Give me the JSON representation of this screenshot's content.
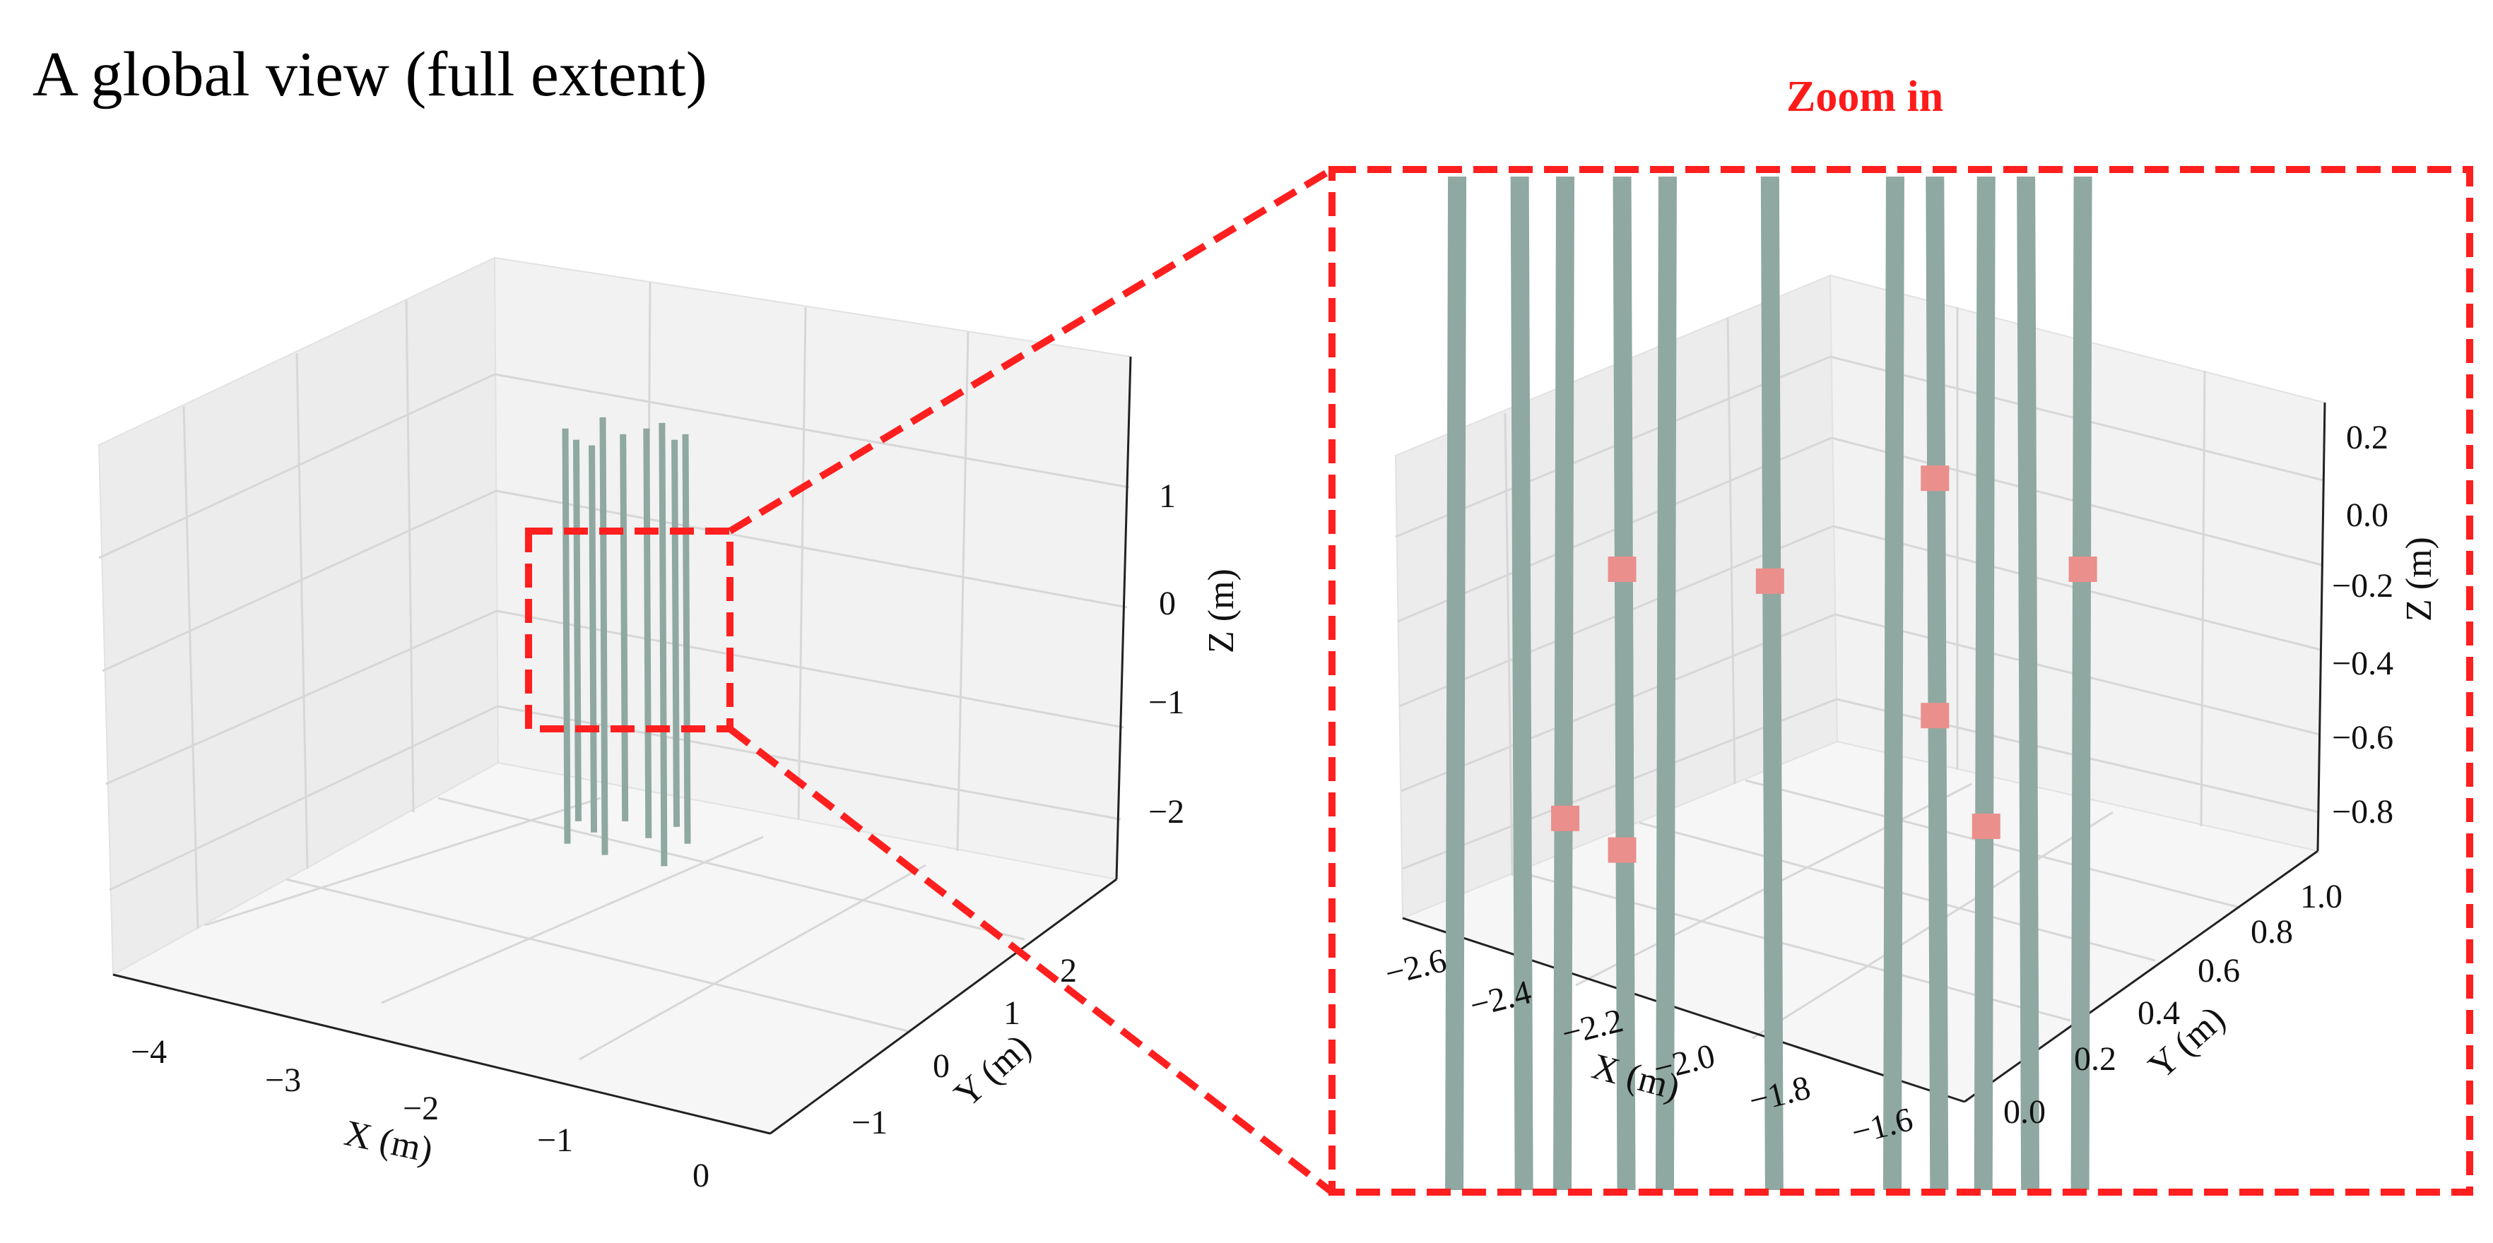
{
  "figure": {
    "title": "A  global view (full extent)",
    "zoom_label": "Zoom in"
  },
  "colors": {
    "point_cloud": "#8fa8a1",
    "segments": "#ea8f8c",
    "zoom_box": "#ff1f1f"
  },
  "chart_data": [
    {
      "type": "scatter3d",
      "name": "global",
      "xlabel": "X (m)",
      "ylabel": "Y (m)",
      "zlabel": "Z (m)",
      "xticks": [
        "−4",
        "−3",
        "−2",
        "−1",
        "0"
      ],
      "yticks": [
        "−1",
        "0",
        "1",
        "2"
      ],
      "zticks": [
        "1",
        "0",
        "−1",
        "−2"
      ],
      "xlim": [
        -4.5,
        0.2
      ],
      "ylim": [
        -1.5,
        2.8
      ],
      "zlim": [
        -2.7,
        1.8
      ],
      "grid": true,
      "trunks": [
        {
          "x": -2.62,
          "y": 0.35,
          "z_bottom": -2.1,
          "z_top": 1.6
        },
        {
          "x": -2.55,
          "y": 0.45,
          "z_bottom": -1.9,
          "z_top": 1.5
        },
        {
          "x": -2.45,
          "y": 0.55,
          "z_bottom": -2.0,
          "z_top": 1.45
        },
        {
          "x": -2.38,
          "y": 0.75,
          "z_bottom": -2.2,
          "z_top": 1.7
        },
        {
          "x": -2.25,
          "y": 0.5,
          "z_bottom": -1.9,
          "z_top": 1.55
        },
        {
          "x": -2.1,
          "y": 0.6,
          "z_bottom": -2.05,
          "z_top": 1.6
        },
        {
          "x": -2.0,
          "y": 0.7,
          "z_bottom": -2.3,
          "z_top": 1.65
        },
        {
          "x": -1.92,
          "y": 0.45,
          "z_bottom": -1.95,
          "z_top": 1.5
        },
        {
          "x": -1.85,
          "y": 0.8,
          "z_bottom": -2.1,
          "z_top": 1.55
        }
      ],
      "zoom_box": {
        "xlim": [
          -2.7,
          -1.5
        ],
        "zlim": [
          -0.85,
          0.25
        ]
      }
    },
    {
      "type": "scatter3d",
      "name": "zoom",
      "xlabel": "X (m)",
      "ylabel": "Y (m)",
      "zlabel": "Z (m)",
      "xticks": [
        "−2.6",
        "−2.4",
        "−2.2",
        "−2.0",
        "−1.8",
        "−1.6"
      ],
      "yticks": [
        "0.0",
        "0.2",
        "0.4",
        "0.6",
        "0.8",
        "1.0"
      ],
      "zticks": [
        "0.2",
        "0.0",
        "−0.2",
        "−0.4",
        "−0.6",
        "−0.8"
      ],
      "xlim": [
        -2.7,
        -1.5
      ],
      "ylim": [
        -0.05,
        1.05
      ],
      "zlim": [
        -0.9,
        0.3
      ],
      "grid": true,
      "trunks": [
        {
          "screen_x": 0.11,
          "w": 3
        },
        {
          "screen_x": 0.165,
          "w": 3
        },
        {
          "screen_x": 0.205,
          "w": 3
        },
        {
          "screen_x": 0.255,
          "w": 3
        },
        {
          "screen_x": 0.295,
          "w": 3
        },
        {
          "screen_x": 0.385,
          "w": 3
        },
        {
          "screen_x": 0.495,
          "w": 3
        },
        {
          "screen_x": 0.53,
          "w": 3
        },
        {
          "screen_x": 0.575,
          "w": 3
        },
        {
          "screen_x": 0.61,
          "w": 3
        },
        {
          "screen_x": 0.66,
          "w": 3
        }
      ],
      "segments": [
        {
          "trunk": 3,
          "z": -0.15
        },
        {
          "trunk": 5,
          "z": -0.18
        },
        {
          "trunk": 7,
          "z": 0.08
        },
        {
          "trunk": 10,
          "z": -0.15
        },
        {
          "trunk": 2,
          "z": -0.78
        },
        {
          "trunk": 3,
          "z": -0.86
        },
        {
          "trunk": 8,
          "z": -0.8
        },
        {
          "trunk": 7,
          "z": -0.52
        }
      ]
    }
  ]
}
